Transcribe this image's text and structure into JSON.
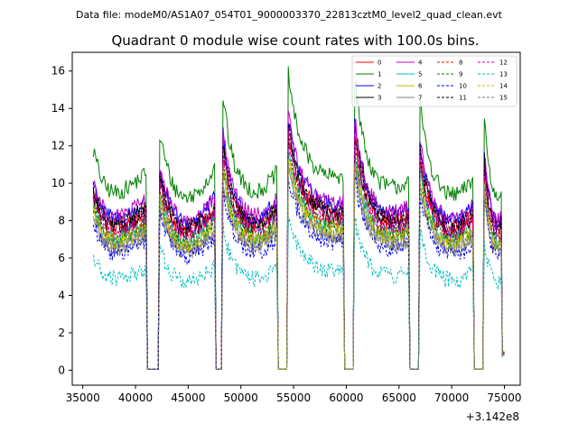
{
  "chart_data": {
    "type": "line",
    "suptitle": "Data file: modeM0/AS1A07_054T01_9000003370_22813cztM0_level2_quad_clean.evt",
    "title": "Quadrant 0 module wise count rates with 100.0s bins.",
    "xlabel": "",
    "ylabel": "",
    "x_offset_label": "+3.142e8",
    "xlim": [
      34000,
      76500
    ],
    "ylim": [
      -0.8,
      17
    ],
    "x_ticks": [
      35000,
      40000,
      45000,
      50000,
      55000,
      60000,
      65000,
      70000,
      75000
    ],
    "x_tick_labels": [
      "35000",
      "40000",
      "45000",
      "50000",
      "55000",
      "60000",
      "65000",
      "70000",
      "75000"
    ],
    "y_ticks": [
      0,
      2,
      4,
      6,
      8,
      10,
      12,
      14,
      16
    ],
    "y_tick_labels": [
      "0",
      "2",
      "4",
      "6",
      "8",
      "10",
      "12",
      "14",
      "16"
    ],
    "grid": false,
    "legend_position": "top-right",
    "gaps": [
      [
        41200,
        42200
      ],
      [
        47600,
        48300
      ],
      [
        53500,
        54500
      ],
      [
        59800,
        60800
      ],
      [
        66000,
        67000
      ],
      [
        72200,
        73000
      ]
    ],
    "segments": [
      {
        "start": 36000,
        "end": 41000,
        "shape": [
          1.08,
          0.97,
          0.9,
          0.88,
          0.87,
          0.88,
          0.9,
          0.92,
          0.94,
          0.97
        ]
      },
      {
        "start": 42300,
        "end": 47500,
        "shape": [
          1.15,
          1.02,
          0.92,
          0.87,
          0.85,
          0.85,
          0.87,
          0.9,
          0.94,
          0.99
        ]
      },
      {
        "start": 48300,
        "end": 53400,
        "shape": [
          1.35,
          1.12,
          1.0,
          0.94,
          0.9,
          0.88,
          0.88,
          0.9,
          0.93,
          0.97
        ]
      },
      {
        "start": 54500,
        "end": 59700,
        "shape": [
          1.45,
          1.25,
          1.13,
          1.06,
          1.01,
          0.98,
          0.96,
          0.95,
          0.95,
          0.96
        ]
      },
      {
        "start": 60800,
        "end": 65900,
        "shape": [
          1.42,
          1.2,
          1.06,
          0.98,
          0.93,
          0.91,
          0.9,
          0.9,
          0.91,
          0.93
        ]
      },
      {
        "start": 67000,
        "end": 72000,
        "shape": [
          1.3,
          1.1,
          0.99,
          0.92,
          0.88,
          0.86,
          0.86,
          0.87,
          0.9,
          0.94
        ]
      },
      {
        "start": 73100,
        "end": 75000,
        "shape": [
          1.25,
          1.1,
          1.0,
          0.93,
          0.88,
          0.86,
          0.85,
          0.87,
          0.9,
          0.93
        ]
      }
    ],
    "series": [
      {
        "name": "0",
        "color": "#ff0000",
        "style": "solid",
        "base": 8.9
      },
      {
        "name": "1",
        "color": "#008000",
        "style": "solid",
        "base": 10.9
      },
      {
        "name": "2",
        "color": "#0000ff",
        "style": "solid",
        "base": 9.3
      },
      {
        "name": "3",
        "color": "#000000",
        "style": "solid",
        "base": 8.7
      },
      {
        "name": "4",
        "color": "#bf00bf",
        "style": "solid",
        "base": 9.4
      },
      {
        "name": "5",
        "color": "#00bfbf",
        "style": "solid",
        "base": 8.1
      },
      {
        "name": "6",
        "color": "#bfbf00",
        "style": "solid",
        "base": 7.8
      },
      {
        "name": "7",
        "color": "#808080",
        "style": "solid",
        "base": 7.5
      },
      {
        "name": "8",
        "color": "#ff0000",
        "style": "dashed",
        "base": 8.4
      },
      {
        "name": "9",
        "color": "#008000",
        "style": "dashed",
        "base": 8.1
      },
      {
        "name": "10",
        "color": "#0000ff",
        "style": "dashed",
        "base": 7.2
      },
      {
        "name": "11",
        "color": "#000000",
        "style": "dashed",
        "base": 9.0
      },
      {
        "name": "12",
        "color": "#bf00bf",
        "style": "dashed",
        "base": 8.6
      },
      {
        "name": "13",
        "color": "#00bfbf",
        "style": "dashed",
        "base": 5.6
      },
      {
        "name": "14",
        "color": "#bfbf00",
        "style": "dashed",
        "base": 7.9
      },
      {
        "name": "15",
        "color": "#808080",
        "style": "dashed",
        "base": 7.6
      }
    ]
  }
}
